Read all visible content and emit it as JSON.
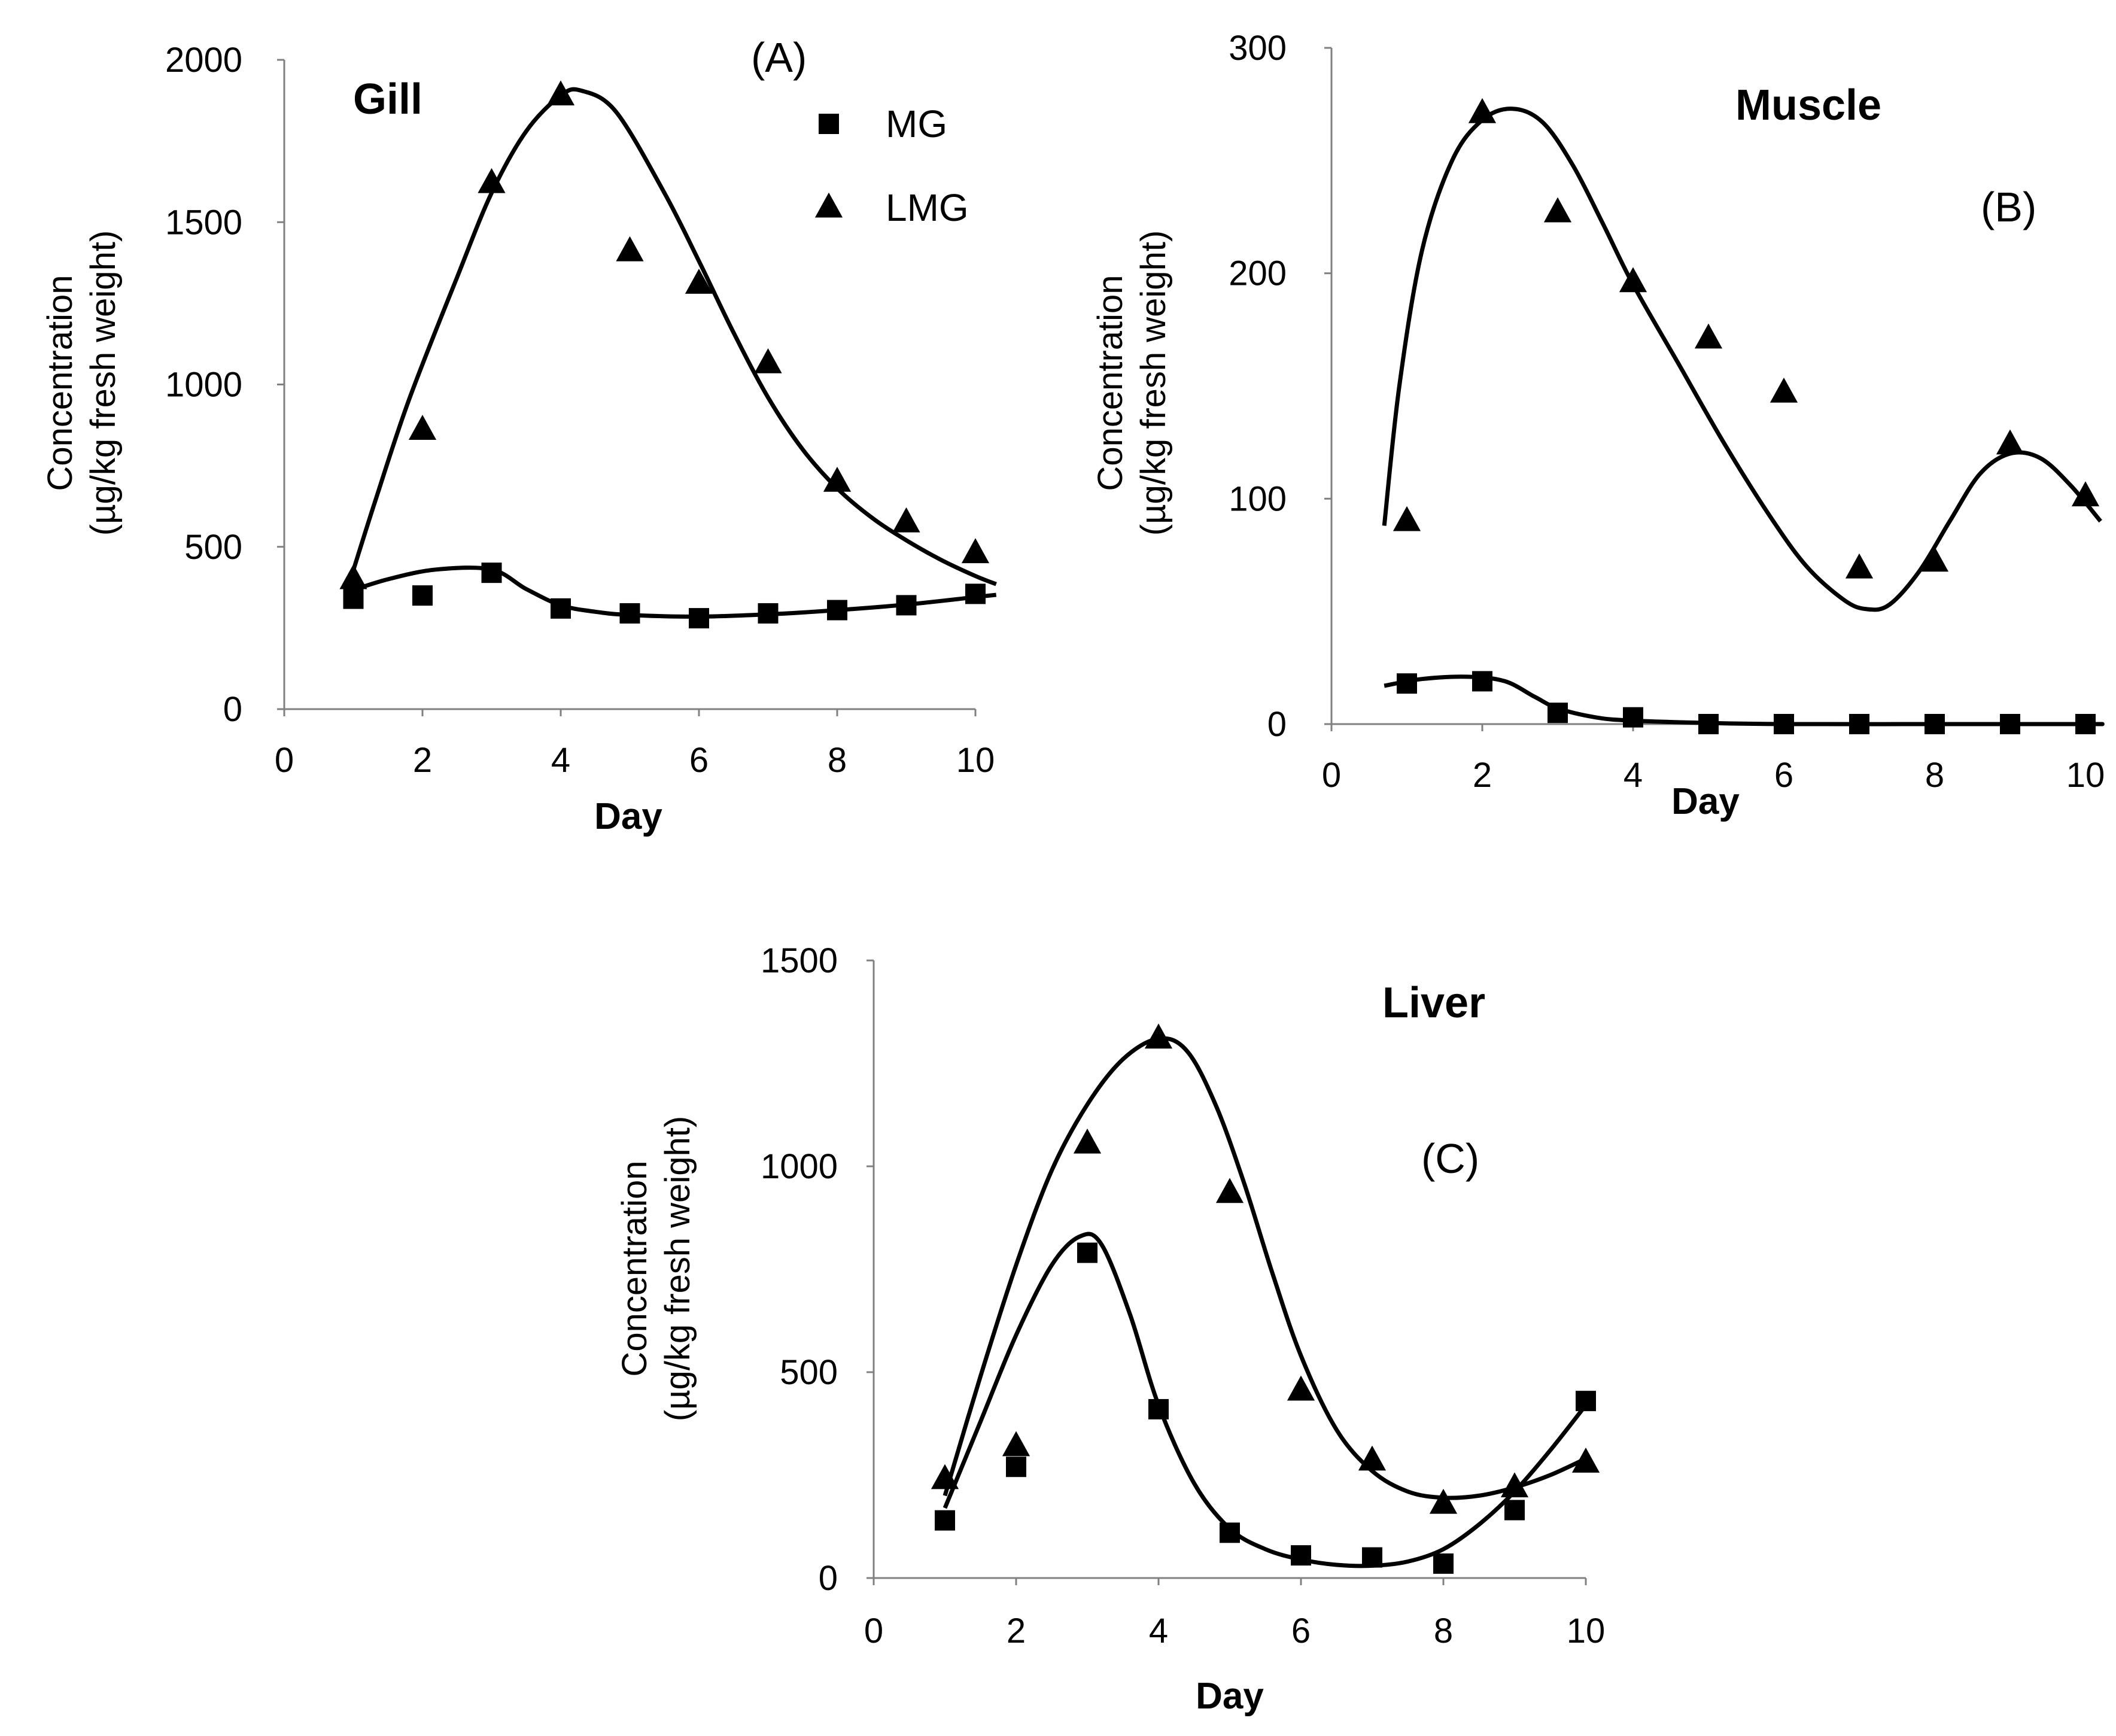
{
  "chart_data": [
    {
      "id": "A",
      "type": "scatter",
      "title": "Gill",
      "panel_label": "(A)",
      "xlabel": "Day",
      "ylabel": [
        "Concentration",
        "(µg/kg fresh weight)"
      ],
      "xlim": [
        0,
        10
      ],
      "ylim": [
        0,
        2000
      ],
      "xticks": [
        0,
        2,
        4,
        6,
        8,
        10
      ],
      "yticks": [
        0,
        500,
        1000,
        1500,
        2000
      ],
      "legend": {
        "position": "top-right",
        "entries": [
          {
            "label": "MG",
            "marker": "square"
          },
          {
            "label": "LMG",
            "marker": "triangle"
          }
        ]
      },
      "series": [
        {
          "name": "MG",
          "marker": "square",
          "x": [
            1,
            2,
            3,
            4,
            5,
            6,
            7,
            8,
            9,
            10
          ],
          "values": [
            340,
            350,
            420,
            310,
            295,
            280,
            295,
            305,
            320,
            355
          ],
          "fit": [
            [
              0.9,
              360
            ],
            [
              1.5,
              400
            ],
            [
              2.2,
              430
            ],
            [
              3,
              430
            ],
            [
              3.5,
              370
            ],
            [
              4,
              320
            ],
            [
              4.5,
              300
            ],
            [
              5,
              290
            ],
            [
              6,
              285
            ],
            [
              7,
              292
            ],
            [
              8,
              305
            ],
            [
              9,
              322
            ],
            [
              10,
              345
            ],
            [
              10.3,
              352
            ]
          ]
        },
        {
          "name": "LMG",
          "marker": "triangle",
          "x": [
            1,
            2,
            3,
            4,
            5,
            6,
            7,
            8,
            9,
            10
          ],
          "values": [
            400,
            860,
            1620,
            1890,
            1410,
            1310,
            1065,
            700,
            575,
            480
          ],
          "fit": [
            [
              0.9,
              360
            ],
            [
              1.3,
              630
            ],
            [
              1.8,
              950
            ],
            [
              2.5,
              1330
            ],
            [
              3,
              1590
            ],
            [
              3.5,
              1780
            ],
            [
              4,
              1890
            ],
            [
              4.3,
              1905
            ],
            [
              4.8,
              1840
            ],
            [
              5.5,
              1590
            ],
            [
              6,
              1380
            ],
            [
              6.5,
              1160
            ],
            [
              7,
              960
            ],
            [
              7.5,
              800
            ],
            [
              8,
              680
            ],
            [
              8.5,
              590
            ],
            [
              9,
              520
            ],
            [
              9.5,
              460
            ],
            [
              10,
              410
            ],
            [
              10.3,
              385
            ]
          ]
        }
      ]
    },
    {
      "id": "B",
      "type": "scatter",
      "title": "Muscle",
      "panel_label": "(B)",
      "xlabel": "Day",
      "ylabel": [
        "Concentration",
        "(µg/kg fresh weight)"
      ],
      "xlim": [
        0,
        10
      ],
      "ylim": [
        0,
        300
      ],
      "xticks": [
        0,
        2,
        4,
        6,
        8,
        10
      ],
      "yticks": [
        0,
        100,
        200,
        300
      ],
      "series": [
        {
          "name": "MG",
          "marker": "square",
          "x": [
            1,
            2,
            3,
            4,
            5,
            6,
            7,
            8,
            9,
            10
          ],
          "values": [
            18,
            19,
            5,
            3,
            0,
            0,
            0,
            0,
            0,
            0
          ],
          "fit": [
            [
              0.7,
              17
            ],
            [
              1.2,
              20
            ],
            [
              1.8,
              21
            ],
            [
              2.3,
              19
            ],
            [
              2.7,
              12
            ],
            [
              3,
              7
            ],
            [
              3.5,
              3
            ],
            [
              4,
              1.5
            ],
            [
              5,
              0.5
            ],
            [
              6,
              0
            ],
            [
              8,
              0
            ],
            [
              10,
              0
            ],
            [
              10.2,
              0
            ]
          ]
        },
        {
          "name": "LMG",
          "marker": "triangle",
          "x": [
            1,
            2,
            3,
            4,
            5,
            6,
            7,
            8,
            9,
            10
          ],
          "values": [
            90,
            271,
            227,
            196,
            171,
            147,
            69,
            72,
            124,
            101
          ],
          "fit": [
            [
              0.7,
              88
            ],
            [
              0.9,
              150
            ],
            [
              1.2,
              210
            ],
            [
              1.6,
              250
            ],
            [
              2,
              268
            ],
            [
              2.4,
              273
            ],
            [
              2.8,
              267
            ],
            [
              3.2,
              248
            ],
            [
              3.6,
              222
            ],
            [
              4,
              195
            ],
            [
              4.6,
              160
            ],
            [
              5.2,
              125
            ],
            [
              5.8,
              93
            ],
            [
              6.3,
              70
            ],
            [
              6.8,
              55
            ],
            [
              7.1,
              51
            ],
            [
              7.4,
              53
            ],
            [
              7.8,
              68
            ],
            [
              8.2,
              90
            ],
            [
              8.6,
              111
            ],
            [
              9,
              120
            ],
            [
              9.4,
              118
            ],
            [
              9.8,
              106
            ],
            [
              10.2,
              90
            ]
          ]
        }
      ]
    },
    {
      "id": "C",
      "type": "scatter",
      "title": "Liver",
      "panel_label": "(C)",
      "xlabel": "Day",
      "ylabel": [
        "Concentration",
        "(µg/kg fresh weight)"
      ],
      "xlim": [
        0,
        10
      ],
      "ylim": [
        0,
        1500
      ],
      "xticks": [
        0,
        2,
        4,
        6,
        8,
        10
      ],
      "yticks": [
        0,
        500,
        1000,
        1500
      ],
      "series": [
        {
          "name": "MG",
          "marker": "square",
          "x": [
            1,
            2,
            3,
            4,
            5,
            6,
            7,
            8,
            9,
            10
          ],
          "values": [
            140,
            270,
            790,
            410,
            110,
            55,
            50,
            35,
            165,
            430
          ],
          "fit": [
            [
              1,
              170
            ],
            [
              1.5,
              380
            ],
            [
              2,
              590
            ],
            [
              2.5,
              760
            ],
            [
              2.9,
              830
            ],
            [
              3.2,
              810
            ],
            [
              3.6,
              640
            ],
            [
              4,
              420
            ],
            [
              4.5,
              230
            ],
            [
              5,
              120
            ],
            [
              5.5,
              70
            ],
            [
              6,
              45
            ],
            [
              6.5,
              32
            ],
            [
              7,
              30
            ],
            [
              7.5,
              40
            ],
            [
              8,
              70
            ],
            [
              8.5,
              130
            ],
            [
              9,
              210
            ],
            [
              9.5,
              310
            ],
            [
              10,
              420
            ]
          ]
        },
        {
          "name": "LMG",
          "marker": "triangle",
          "x": [
            1,
            2,
            3,
            4,
            5,
            6,
            7,
            8,
            9,
            10
          ],
          "values": [
            240,
            320,
            1055,
            1310,
            935,
            455,
            285,
            180,
            220,
            280
          ],
          "fit": [
            [
              1,
              200
            ],
            [
              1.5,
              490
            ],
            [
              2,
              760
            ],
            [
              2.5,
              990
            ],
            [
              3,
              1150
            ],
            [
              3.5,
              1260
            ],
            [
              4,
              1310
            ],
            [
              4.4,
              1280
            ],
            [
              4.8,
              1150
            ],
            [
              5.2,
              960
            ],
            [
              5.6,
              740
            ],
            [
              6,
              540
            ],
            [
              6.5,
              360
            ],
            [
              7,
              260
            ],
            [
              7.5,
              210
            ],
            [
              8,
              195
            ],
            [
              8.5,
              200
            ],
            [
              9,
              220
            ],
            [
              9.5,
              250
            ],
            [
              10,
              290
            ]
          ]
        }
      ]
    }
  ]
}
